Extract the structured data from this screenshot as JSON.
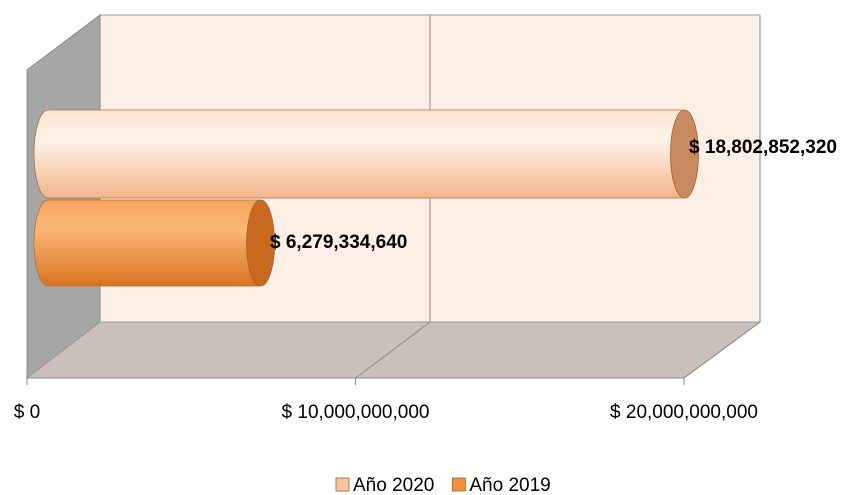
{
  "chart_data": {
    "type": "bar",
    "orientation": "horizontal",
    "3d": true,
    "categories": [
      null
    ],
    "series": [
      {
        "name": "Año 2020",
        "color": "#f9c4a0",
        "values": [
          18802852320
        ],
        "value_labels": [
          "$ 18,802,852,320"
        ]
      },
      {
        "name": "Año 2019",
        "color": "#f0903c",
        "values": [
          6279334640
        ],
        "value_labels": [
          "$ 6,279,334,640"
        ]
      }
    ],
    "xlim": [
      0,
      20000000000
    ],
    "xticks": [
      {
        "value": 0,
        "label": "$ 0"
      },
      {
        "value": 10000000000,
        "label": "$ 10,000,000,000"
      },
      {
        "value": 20000000000,
        "label": "$ 20,000,000,000"
      }
    ],
    "grid": true,
    "legend": "bottom"
  }
}
